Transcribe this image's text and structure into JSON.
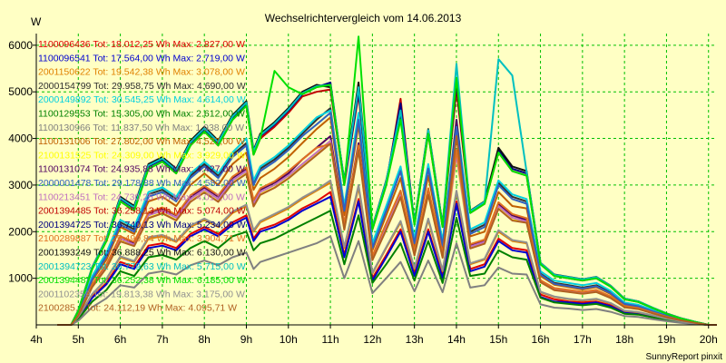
{
  "chart_data": {
    "type": "line",
    "title": "Wechselrichtervergleich vom 14.06.2013",
    "ylabel": "W",
    "xlabel": "",
    "footer": "SunnyReport pinxit",
    "xlim": [
      4,
      20.2
    ],
    "ylim": [
      0,
      6250
    ],
    "y_ticks": [
      1000,
      2000,
      3000,
      4000,
      5000,
      6000
    ],
    "x_ticks": [
      "4h",
      "5h",
      "6h",
      "7h",
      "8h",
      "9h",
      "10h",
      "11h",
      "12h",
      "13h",
      "14h",
      "15h",
      "16h",
      "17h",
      "18h",
      "19h",
      "20h"
    ],
    "grid": true,
    "legend_placement": "top-left inside plot",
    "x": [
      4.5,
      4.83,
      5.0,
      5.33,
      5.67,
      6.0,
      6.33,
      6.67,
      7.0,
      7.33,
      7.67,
      8.0,
      8.33,
      8.67,
      9.0,
      9.17,
      9.33,
      9.67,
      10.0,
      10.33,
      10.67,
      11.0,
      11.33,
      11.67,
      12.0,
      12.33,
      12.67,
      13.0,
      13.33,
      13.67,
      14.0,
      14.33,
      14.67,
      15.0,
      15.33,
      15.67,
      16.0,
      16.33,
      16.67,
      17.0,
      17.33,
      17.67,
      18.0,
      18.33,
      18.67,
      19.0,
      19.33,
      19.67,
      20.0,
      20.2
    ],
    "series": [
      {
        "name": "1100096436 Tot: 18.012,25 Wh Max: 2.827,00 W",
        "color": "#e00000",
        "peak": 2827,
        "values": [
          0,
          0,
          150,
          600,
          900,
          1350,
          1250,
          1700,
          1750,
          1650,
          1950,
          2100,
          1950,
          2200,
          2350,
          1850,
          2050,
          2150,
          2300,
          2500,
          2650,
          2850,
          1500,
          2700,
          1000,
          1500,
          2050,
          1100,
          2050,
          1050,
          2650,
          1200,
          1300,
          1850,
          1650,
          1600,
          650,
          550,
          500,
          480,
          500,
          420,
          280,
          250,
          180,
          120,
          70,
          30,
          0,
          0
        ]
      },
      {
        "name": "1100096541 Tot: 17.564,00 Wh Max: 2.719,00 W",
        "color": "#0000d0",
        "peak": 2719,
        "values": [
          0,
          0,
          140,
          580,
          870,
          1300,
          1200,
          1650,
          1700,
          1600,
          1900,
          2050,
          1900,
          2150,
          2300,
          1800,
          2000,
          2100,
          2250,
          2450,
          2600,
          2750,
          1450,
          2650,
          950,
          1450,
          2000,
          1050,
          2000,
          1000,
          2600,
          1150,
          1250,
          1800,
          1600,
          1550,
          600,
          500,
          480,
          450,
          480,
          400,
          260,
          230,
          170,
          110,
          60,
          30,
          0,
          0
        ]
      },
      {
        "name": "2001150622 Tot: 19.542,38 Wh Max: 3.078,00 W",
        "color": "#e08000",
        "peak": 3078,
        "values": [
          0,
          0,
          170,
          650,
          980,
          1450,
          1350,
          1850,
          1900,
          1780,
          2100,
          2250,
          2100,
          2400,
          2550,
          2000,
          2200,
          2350,
          2500,
          2700,
          2880,
          3050,
          1650,
          2950,
          1100,
          1650,
          2200,
          1200,
          2250,
          1150,
          2850,
          1300,
          1400,
          2000,
          1800,
          1750,
          700,
          600,
          550,
          520,
          550,
          460,
          300,
          270,
          200,
          130,
          80,
          35,
          0,
          0
        ]
      },
      {
        "name": "2000154799 Tot: 29.958,75 Wh Max: 4.690,00 W",
        "color": "#303030",
        "peak": 4690,
        "values": [
          0,
          0,
          250,
          1000,
          1500,
          2200,
          2050,
          2800,
          2900,
          2700,
          3200,
          3450,
          3200,
          3650,
          3900,
          3050,
          3350,
          3550,
          3800,
          4100,
          4400,
          4650,
          2500,
          4500,
          1700,
          2500,
          3350,
          1800,
          3400,
          1750,
          4350,
          2000,
          2150,
          3050,
          2750,
          2650,
          1100,
          900,
          850,
          800,
          850,
          700,
          460,
          410,
          300,
          200,
          120,
          55,
          0,
          0
        ]
      },
      {
        "name": "2000149892 Tot: 30.545,25 Wh Max: 4.614,00 W",
        "color": "#00d0e0",
        "peak": 4614,
        "values": [
          0,
          0,
          260,
          1050,
          1550,
          2250,
          2100,
          2850,
          2950,
          2750,
          3250,
          3500,
          3250,
          3700,
          4000,
          3100,
          3400,
          3600,
          3850,
          4150,
          4450,
          4600,
          2550,
          4550,
          1750,
          2550,
          3400,
          1850,
          3450,
          1800,
          4400,
          2050,
          2200,
          3100,
          2800,
          2700,
          1150,
          950,
          900,
          850,
          900,
          730,
          480,
          430,
          320,
          210,
          130,
          60,
          0,
          0
        ]
      },
      {
        "name": "1100129553 Tot: 15.305,00 Wh Max: 2.612,00 W",
        "color": "#008000",
        "peak": 2612,
        "values": [
          0,
          0,
          120,
          500,
          750,
          1150,
          1050,
          1450,
          1500,
          1400,
          1650,
          1800,
          1650,
          1900,
          2000,
          1600,
          1750,
          1850,
          2000,
          2150,
          2300,
          2450,
          1300,
          2350,
          900,
          1300,
          1750,
          950,
          1800,
          900,
          2300,
          1050,
          1100,
          1600,
          1450,
          1400,
          580,
          480,
          450,
          420,
          450,
          370,
          240,
          220,
          160,
          100,
          60,
          25,
          0,
          0
        ]
      },
      {
        "name": "1100130966 Tot: 11.837,50 Wh Max: 1.938,00 W",
        "color": "#808080",
        "peak": 1938,
        "values": [
          0,
          0,
          90,
          380,
          570,
          850,
          800,
          1100,
          1150,
          1080,
          1280,
          1380,
          1280,
          1450,
          1550,
          1200,
          1350,
          1450,
          1550,
          1650,
          1750,
          1900,
          1000,
          1800,
          680,
          1000,
          1350,
          720,
          1380,
          700,
          1750,
          800,
          850,
          1230,
          1100,
          1080,
          440,
          370,
          350,
          320,
          340,
          280,
          190,
          170,
          120,
          80,
          45,
          20,
          0,
          0
        ]
      },
      {
        "name": "1100131006 Tot: 27.802,00 Wh Max: 4.527,00 W",
        "color": "#c06000",
        "peak": 4527,
        "values": [
          0,
          0,
          230,
          950,
          1400,
          2100,
          1950,
          2650,
          2750,
          2550,
          3000,
          3250,
          3000,
          3450,
          3700,
          2900,
          3150,
          3350,
          3600,
          3900,
          4200,
          4450,
          2350,
          4300,
          1600,
          2350,
          3150,
          1700,
          3200,
          1650,
          4100,
          1900,
          2000,
          2850,
          2550,
          2500,
          1050,
          860,
          810,
          760,
          810,
          660,
          440,
          390,
          290,
          190,
          115,
          50,
          0,
          0
        ]
      },
      {
        "name": "2100131525 Tot: 24.309,00 Wh Max: 3.929,00 W",
        "color": "#ffff00",
        "peak": 3929,
        "values": [
          0,
          0,
          200,
          820,
          1230,
          1800,
          1700,
          2300,
          2400,
          2250,
          2650,
          2850,
          2650,
          3050,
          3250,
          2550,
          2800,
          2950,
          3150,
          3400,
          3650,
          3900,
          2050,
          3750,
          1400,
          2050,
          2750,
          1500,
          2800,
          1450,
          3600,
          1650,
          1750,
          2500,
          2250,
          2200,
          920,
          750,
          710,
          670,
          710,
          580,
          380,
          340,
          250,
          165,
          100,
          45,
          0,
          0
        ]
      },
      {
        "name": "1100131074 Tot: 24.935,88 Wh Max: 4.427,00 W",
        "color": "#500060",
        "peak": 4427,
        "values": [
          0,
          0,
          210,
          850,
          1270,
          1900,
          1750,
          2400,
          2500,
          2350,
          2750,
          2950,
          2750,
          3150,
          3350,
          2650,
          2900,
          3050,
          3250,
          3550,
          3800,
          4050,
          2150,
          3900,
          1450,
          2150,
          2850,
          1550,
          2900,
          1500,
          4400,
          1700,
          1800,
          2600,
          2350,
          2250,
          950,
          780,
          740,
          700,
          740,
          600,
          400,
          350,
          260,
          170,
          105,
          45,
          0,
          0
        ]
      },
      {
        "name": "2000001478 Tot: 29.178,88 Wh Max: 4.582,00 W",
        "color": "#3060c0",
        "peak": 4582,
        "values": [
          0,
          0,
          245,
          980,
          1470,
          2150,
          2000,
          2750,
          2850,
          2650,
          3150,
          3400,
          3150,
          3600,
          3850,
          3000,
          3300,
          3500,
          3750,
          4050,
          4300,
          4550,
          2450,
          4400,
          1650,
          2450,
          3300,
          1750,
          3350,
          1700,
          4250,
          1950,
          2100,
          3000,
          2700,
          2600,
          1080,
          880,
          830,
          780,
          830,
          680,
          450,
          400,
          290,
          195,
          118,
          52,
          0,
          0
        ]
      },
      {
        "name": "1100213451 Tot: 24.730,25 Wh Max: 4.017,00 W",
        "color": "#c070c0",
        "peak": 4017,
        "values": [
          0,
          0,
          205,
          840,
          1260,
          1850,
          1720,
          2350,
          2450,
          2300,
          2700,
          2900,
          2700,
          3100,
          3300,
          2600,
          2850,
          3000,
          3200,
          3450,
          3700,
          3950,
          2100,
          3800,
          1420,
          2100,
          2800,
          1520,
          2850,
          1470,
          3650,
          1680,
          1780,
          2550,
          2300,
          2220,
          930,
          760,
          720,
          680,
          720,
          590,
          390,
          345,
          255,
          168,
          102,
          45,
          0,
          0
        ]
      },
      {
        "name": "2001394485 Tot: 36.258,13 Wh Max: 5.074,00 W",
        "color": "#c00000",
        "peak": 5074,
        "values": [
          0,
          0,
          300,
          1200,
          1800,
          2650,
          2450,
          3350,
          3500,
          3250,
          3850,
          4150,
          3850,
          4400,
          4700,
          3650,
          4000,
          4250,
          4550,
          4900,
          5000,
          5050,
          3000,
          4950,
          2050,
          3000,
          4850,
          2150,
          4100,
          2100,
          5050,
          2400,
          2600,
          3700,
          3300,
          3200,
          1300,
          1050,
          1000,
          950,
          1000,
          820,
          550,
          490,
          360,
          240,
          140,
          65,
          0,
          0
        ]
      },
      {
        "name": "2001394725 Tot: 36.740,13 Wh Max: 5.234,00 W",
        "color": "#000080",
        "peak": 5234,
        "values": [
          0,
          0,
          305,
          1220,
          1830,
          2700,
          2500,
          3400,
          3550,
          3300,
          3900,
          4200,
          3900,
          4450,
          4750,
          3700,
          4050,
          4300,
          4600,
          4950,
          5100,
          5200,
          3050,
          5000,
          2080,
          3050,
          4750,
          2180,
          4150,
          2130,
          5200,
          2430,
          2630,
          3750,
          3350,
          3250,
          1320,
          1070,
          1020,
          970,
          1020,
          830,
          560,
          500,
          365,
          245,
          145,
          66,
          0,
          0
        ]
      },
      {
        "name": "2100289887 Tot: 25.490,84 Wh Max: 3.904,71 W",
        "color": "#e07020",
        "peak": 3904,
        "values": [
          0,
          0,
          215,
          870,
          1300,
          1900,
          1780,
          2420,
          2520,
          2360,
          2780,
          2980,
          2780,
          3180,
          3380,
          2680,
          2930,
          3080,
          3300,
          3550,
          3800,
          3880,
          2180,
          3850,
          1480,
          2180,
          2880,
          1580,
          2930,
          1530,
          3750,
          1730,
          1830,
          2630,
          2380,
          2290,
          960,
          790,
          750,
          710,
          750,
          610,
          405,
          360,
          265,
          175,
          106,
          47,
          0,
          0
        ]
      },
      {
        "name": "2001393249 Tot: 36.888,25 Wh Max: 6.130,00 W",
        "color": "#101010",
        "peak": 6130,
        "values": [
          0,
          0,
          310,
          1240,
          1850,
          2750,
          2550,
          3450,
          3600,
          3350,
          3950,
          4250,
          3950,
          4500,
          4800,
          3750,
          4100,
          4350,
          4650,
          5000,
          5150,
          5100,
          3100,
          5200,
          2100,
          3100,
          4500,
          2200,
          4200,
          2150,
          5250,
          2450,
          2650,
          3800,
          3400,
          3300,
          1330,
          1080,
          1030,
          980,
          1030,
          840,
          565,
          505,
          370,
          248,
          146,
          67,
          0,
          0
        ]
      },
      {
        "name": "2001394723 Tot: 36.779,63 Wh Max: 5.715,00 W",
        "color": "#00c0c0",
        "peak": 5715,
        "values": [
          0,
          0,
          308,
          1230,
          1840,
          2720,
          2520,
          3420,
          3570,
          3320,
          3920,
          4220,
          3920,
          4470,
          4770,
          3720,
          4070,
          4320,
          4620,
          4970,
          5120,
          5150,
          3080,
          5100,
          2090,
          3080,
          4600,
          2190,
          4180,
          2140,
          5600,
          2440,
          2640,
          5700,
          5350,
          3280,
          1325,
          1075,
          1025,
          975,
          1025,
          835,
          562,
          502,
          368,
          246,
          145,
          66,
          0,
          0
        ]
      },
      {
        "name": "2001394487 Tot: 36.252,38 Wh Max: 6.185,00 W",
        "color": "#00e000",
        "peak": 6185,
        "values": [
          0,
          0,
          300,
          1200,
          1800,
          2650,
          2450,
          3350,
          3500,
          3250,
          3850,
          4150,
          3850,
          4400,
          4700,
          3650,
          4000,
          5450,
          5100,
          4950,
          5100,
          5150,
          3000,
          6185,
          2050,
          3000,
          4400,
          2150,
          4100,
          2100,
          5300,
          2400,
          2600,
          3700,
          3300,
          3200,
          1300,
          1050,
          1000,
          950,
          1000,
          820,
          550,
          490,
          360,
          240,
          140,
          65,
          0,
          0
        ]
      },
      {
        "name": "2001102359 Tot: 19.813,38 Wh Max: 3.175,00 W",
        "color": "#909090",
        "peak": 3175,
        "values": [
          0,
          0,
          175,
          660,
          990,
          1470,
          1370,
          1880,
          1930,
          1800,
          2130,
          2280,
          2130,
          2430,
          2580,
          2030,
          2230,
          2380,
          2530,
          2730,
          2900,
          3100,
          1670,
          3000,
          1120,
          1670,
          2230,
          1220,
          2280,
          1170,
          2880,
          1320,
          1420,
          2030,
          1820,
          1770,
          710,
          610,
          560,
          530,
          560,
          470,
          305,
          275,
          205,
          132,
          82,
          36,
          0,
          0
        ]
      },
      {
        "name": "2100285... Tot: 24.112,19 Wh Max: 4.095,71 W",
        "color": "#b06020",
        "peak": 4095,
        "values": [
          0,
          0,
          200,
          810,
          1220,
          1790,
          1690,
          2290,
          2390,
          2240,
          2640,
          2840,
          2640,
          3040,
          3240,
          2540,
          2790,
          2940,
          3140,
          3390,
          3640,
          3890,
          2040,
          3740,
          1390,
          2040,
          2740,
          1490,
          2790,
          1440,
          4050,
          1640,
          1740,
          2490,
          2240,
          2190,
          915,
          745,
          705,
          665,
          705,
          575,
          378,
          338,
          248,
          164,
          99,
          44,
          0,
          0
        ]
      }
    ]
  }
}
